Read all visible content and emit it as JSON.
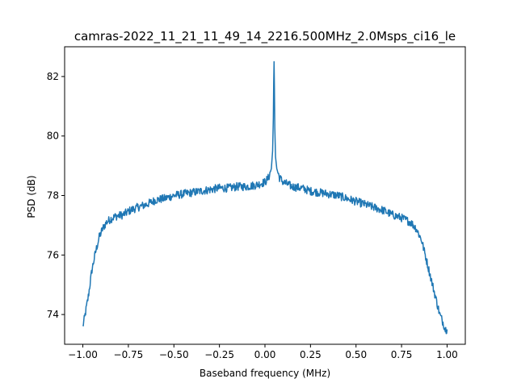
{
  "chart_data": {
    "type": "line",
    "title": "camras-2022_11_21_11_49_14_2216.500MHz_2.0Msps_ci16_le",
    "xlabel": "Baseband frequency (MHz)",
    "ylabel": "PSD (dB)",
    "xlim": [
      -1.1,
      1.1
    ],
    "ylim": [
      73.0,
      83.0
    ],
    "xticks": [
      -1.0,
      -0.75,
      -0.5,
      -0.25,
      0.0,
      0.25,
      0.5,
      0.75,
      1.0
    ],
    "xtick_labels": [
      "−1.00",
      "−0.75",
      "−0.50",
      "−0.25",
      "0.00",
      "0.25",
      "0.50",
      "0.75",
      "1.00"
    ],
    "yticks": [
      74,
      76,
      78,
      80,
      82
    ],
    "ytick_labels": [
      "74",
      "76",
      "78",
      "80",
      "82"
    ],
    "grid": false,
    "legend": false,
    "series": [
      {
        "color": "#1f77b4",
        "x": [
          -1.0,
          -0.99,
          -0.97,
          -0.95,
          -0.93,
          -0.91,
          -0.89,
          -0.87,
          -0.85,
          -0.82,
          -0.78,
          -0.74,
          -0.7,
          -0.65,
          -0.6,
          -0.55,
          -0.5,
          -0.45,
          -0.4,
          -0.35,
          -0.3,
          -0.25,
          -0.2,
          -0.15,
          -0.1,
          -0.05,
          0.0,
          0.02,
          0.035,
          0.042,
          0.046,
          0.048,
          0.05,
          0.052,
          0.054,
          0.058,
          0.065,
          0.08,
          0.1,
          0.15,
          0.2,
          0.25,
          0.3,
          0.35,
          0.4,
          0.45,
          0.5,
          0.55,
          0.6,
          0.65,
          0.7,
          0.75,
          0.8,
          0.83,
          0.86,
          0.88,
          0.9,
          0.92,
          0.94,
          0.96,
          0.98,
          0.99,
          1.0
        ],
        "y": [
          73.6,
          73.9,
          74.6,
          75.5,
          76.1,
          76.6,
          76.9,
          77.1,
          77.2,
          77.3,
          77.35,
          77.5,
          77.6,
          77.7,
          77.85,
          77.9,
          78.0,
          78.05,
          78.1,
          78.15,
          78.2,
          78.25,
          78.25,
          78.3,
          78.3,
          78.35,
          78.45,
          78.6,
          78.9,
          79.5,
          80.6,
          81.8,
          82.5,
          81.6,
          80.3,
          79.3,
          78.9,
          78.6,
          78.45,
          78.3,
          78.25,
          78.15,
          78.1,
          78.05,
          78.0,
          77.9,
          77.8,
          77.7,
          77.6,
          77.5,
          77.35,
          77.25,
          77.1,
          76.9,
          76.5,
          76.0,
          75.5,
          75.0,
          74.5,
          74.0,
          73.7,
          73.5,
          73.5
        ]
      }
    ]
  }
}
